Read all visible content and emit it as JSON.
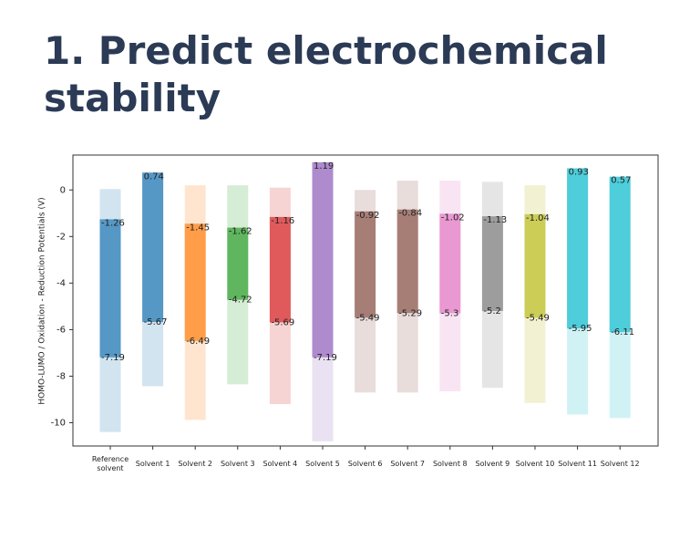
{
  "title": "1. Predict electrochemical stability",
  "chart_data": {
    "type": "floating-bar",
    "y_label": "HOMO-LUMO / Oxidation - Reduction Potentials (V)",
    "categories": [
      "Reference solvent",
      "Solvent 1",
      "Solvent 2",
      "Solvent 3",
      "Solvent 4",
      "Solvent 5",
      "Solvent 6",
      "Solvent 7",
      "Solvent 8",
      "Solvent 9",
      "Solvent 10",
      "Solvent 11",
      "Solvent 12"
    ],
    "colors": [
      "#1f77b4",
      "#1f77b4",
      "#ff7f0e",
      "#2ca02c",
      "#d62728",
      "#9467bd",
      "#8c564b",
      "#8c564b",
      "#e377c2",
      "#7f7f7f",
      "#bcbd22",
      "#17becf",
      "#17becf"
    ],
    "range_high": [
      0.04,
      0.78,
      0.2,
      0.2,
      0.1,
      1.19,
      0.0,
      0.4,
      0.4,
      0.35,
      0.2,
      0.93,
      0.57
    ],
    "range_low": [
      -10.4,
      -8.43,
      -9.88,
      -8.35,
      -9.2,
      -10.8,
      -8.7,
      -8.7,
      -8.65,
      -8.5,
      -9.15,
      -9.65,
      -9.8
    ],
    "upper": [
      -1.26,
      0.74,
      -1.45,
      -1.62,
      -1.16,
      1.19,
      -0.92,
      -0.84,
      -1.02,
      -1.13,
      -1.04,
      0.93,
      0.57
    ],
    "lower": [
      -7.19,
      -5.67,
      -6.49,
      -4.72,
      -5.69,
      -7.19,
      -5.49,
      -5.29,
      -5.3,
      -5.2,
      -5.49,
      -5.95,
      -6.11
    ],
    "ylim": [
      -11,
      1.5
    ],
    "yticks": [
      0,
      -2,
      -4,
      -6,
      -8,
      -10
    ]
  }
}
